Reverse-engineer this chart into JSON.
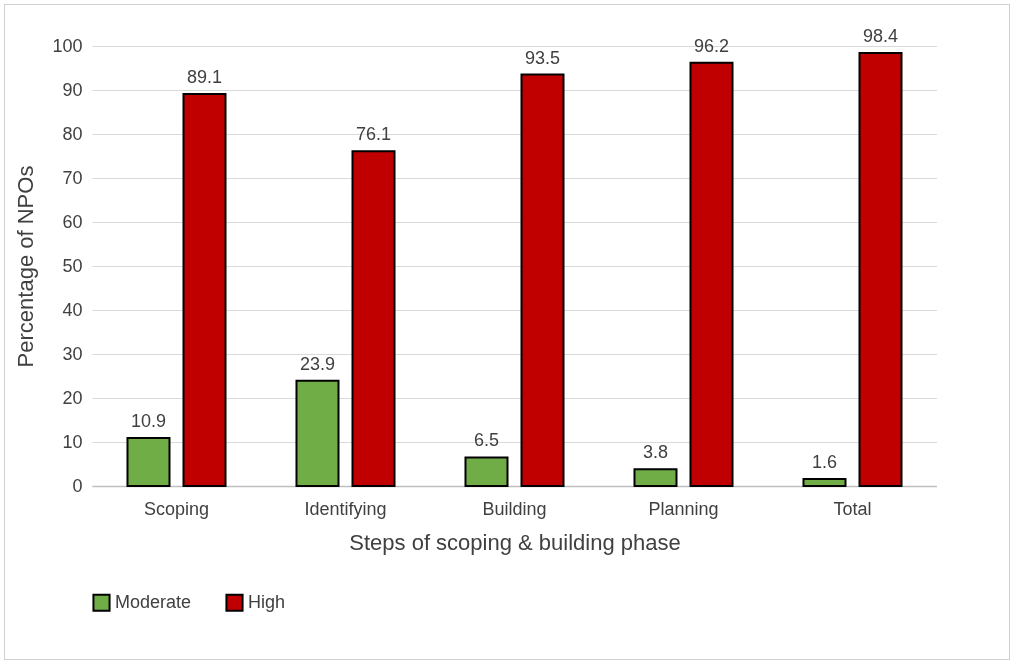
{
  "chart_data": {
    "type": "bar",
    "xlabel": "Steps of scoping & building phase",
    "ylabel": "Percentage of NPOs",
    "categories": [
      "Scoping",
      "Identifying",
      "Building",
      "Planning",
      "Total"
    ],
    "series": [
      {
        "name": "Moderate",
        "color": "#70ad47",
        "values": [
          10.9,
          23.9,
          6.5,
          3.8,
          1.6
        ]
      },
      {
        "name": "High",
        "color": "#c00000",
        "values": [
          89.1,
          76.1,
          93.5,
          96.2,
          98.4
        ]
      }
    ],
    "ylim": [
      0,
      100
    ],
    "yticks": [
      0,
      10,
      20,
      30,
      40,
      50,
      60,
      70,
      80,
      90,
      100
    ],
    "grid": "y",
    "legend": "bottom",
    "data_labels": true
  }
}
